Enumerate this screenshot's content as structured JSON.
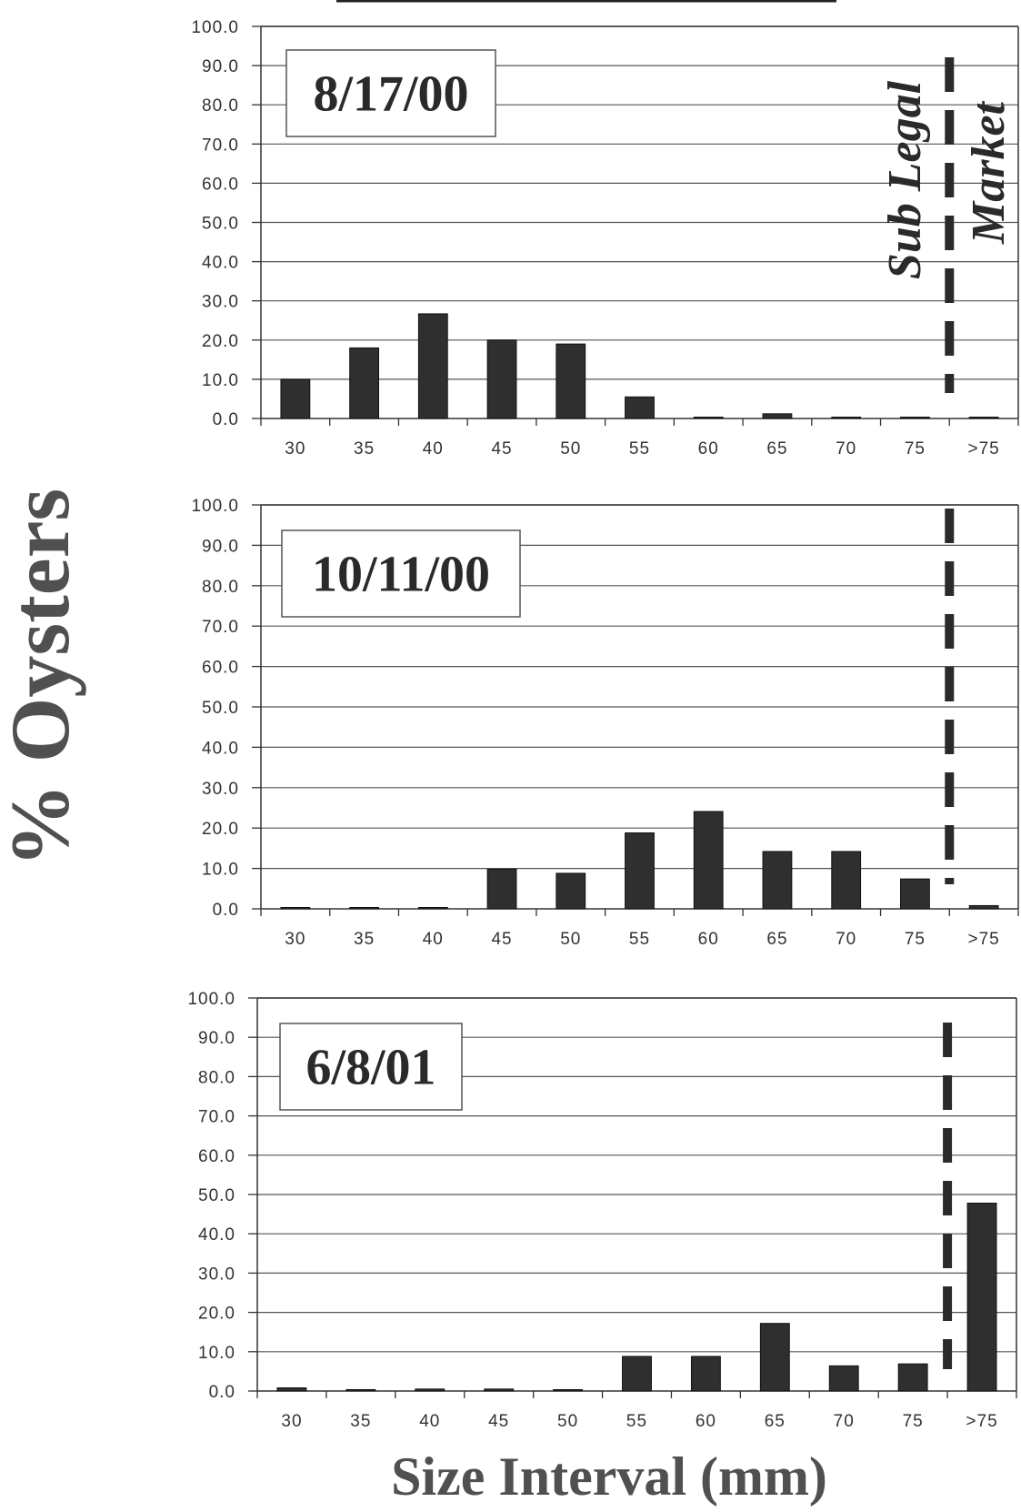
{
  "figure": {
    "ylabel": "% Oysters",
    "xlabel": "Size Interval (mm)",
    "annotation_left": "Sub Legal",
    "annotation_right": "Market"
  },
  "chart_data": [
    {
      "type": "bar",
      "title": "8/17/00",
      "categories": [
        "30",
        "35",
        "40",
        "45",
        "50",
        "55",
        "60",
        "65",
        "70",
        "75",
        ">75"
      ],
      "values": [
        10.0,
        18.0,
        26.7,
        20.0,
        19.0,
        5.5,
        0.0,
        1.2,
        0.0,
        0.0,
        0.0
      ],
      "y_ticks": [
        "0.0",
        "10.0",
        "20.0",
        "30.0",
        "40.0",
        "50.0",
        "60.0",
        "70.0",
        "80.0",
        "90.0",
        "100.0"
      ],
      "ylim": [
        0,
        100
      ],
      "grid": true,
      "legal_line_between": [
        "75",
        ">75"
      ],
      "bar_color": "#2f2f2f"
    },
    {
      "type": "bar",
      "title": "10/11/00",
      "categories": [
        "30",
        "35",
        "40",
        "45",
        "50",
        "55",
        "60",
        "65",
        "70",
        "75",
        ">75"
      ],
      "values": [
        0.0,
        0.0,
        0.0,
        9.8,
        8.8,
        18.8,
        24.1,
        14.2,
        14.2,
        7.4,
        0.8
      ],
      "y_ticks": [
        "0.0",
        "10.0",
        "20.0",
        "30.0",
        "40.0",
        "50.0",
        "60.0",
        "70.0",
        "80.0",
        "90.0",
        "100.0"
      ],
      "ylim": [
        0,
        100
      ],
      "grid": true,
      "legal_line_between": [
        "75",
        ">75"
      ],
      "bar_color": "#2f2f2f"
    },
    {
      "type": "bar",
      "title": "6/8/01",
      "categories": [
        "30",
        "35",
        "40",
        "45",
        "50",
        "55",
        "60",
        "65",
        "70",
        "75",
        ">75"
      ],
      "values": [
        0.8,
        0.0,
        0.5,
        0.5,
        0.0,
        8.8,
        8.8,
        17.2,
        6.4,
        6.9,
        47.8
      ],
      "y_ticks": [
        "0.0",
        "10.0",
        "20.0",
        "30.0",
        "40.0",
        "50.0",
        "60.0",
        "70.0",
        "80.0",
        "90.0",
        "100.0"
      ],
      "ylim": [
        0,
        100
      ],
      "grid": true,
      "legal_line_between": [
        "75",
        ">75"
      ],
      "bar_color": "#2f2f2f"
    }
  ]
}
